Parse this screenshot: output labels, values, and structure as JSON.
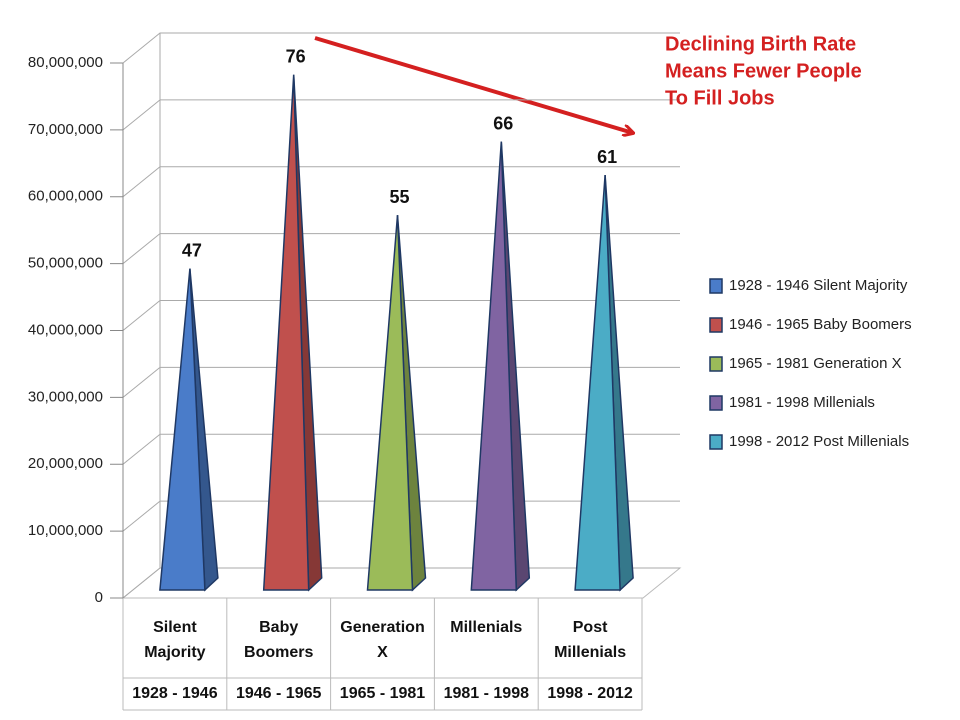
{
  "chart_data": {
    "type": "pyramid",
    "categories": [
      "Silent Majority",
      "Baby Boomers",
      "Generation X",
      "Millenials",
      "Post Millenials"
    ],
    "periods": [
      "1928 - 1946",
      "1946 - 1965",
      "1965 - 1981",
      "1981 - 1998",
      "1998 - 2012"
    ],
    "values": [
      47000000,
      76000000,
      55000000,
      66000000,
      61000000
    ],
    "value_labels": [
      "47",
      "76",
      "55",
      "66",
      "61"
    ],
    "colors": [
      "#4a7cc9",
      "#c0504d",
      "#9bbb59",
      "#8064a2",
      "#4bacc6"
    ],
    "legend": [
      "1928 - 1946 Silent Majority",
      "1946 - 1965 Baby Boomers",
      "1965 - 1981 Generation X",
      "1981 - 1998 Millenials",
      "1998 - 2012 Post Millenials"
    ],
    "legend_position": "right",
    "ylim": [
      0,
      80000000
    ],
    "yticks": [
      0,
      {
        "value": 10000000,
        "label": "10,000,000"
      },
      {
        "value": 20000000,
        "label": "20,000,000"
      },
      {
        "value": 30000000,
        "label": "30,000,000"
      },
      {
        "value": 40000000,
        "label": "40,000,000"
      },
      {
        "value": 50000000,
        "label": "50,000,000"
      },
      {
        "value": 60000000,
        "label": "60,000,000"
      },
      {
        "value": 70000000,
        "label": "70,000,000"
      },
      {
        "value": 80000000,
        "label": "80,000,000"
      }
    ],
    "grid": true,
    "annotation": [
      "Declining Birth Rate",
      "Means Fewer People",
      "To Fill Jobs"
    ]
  }
}
